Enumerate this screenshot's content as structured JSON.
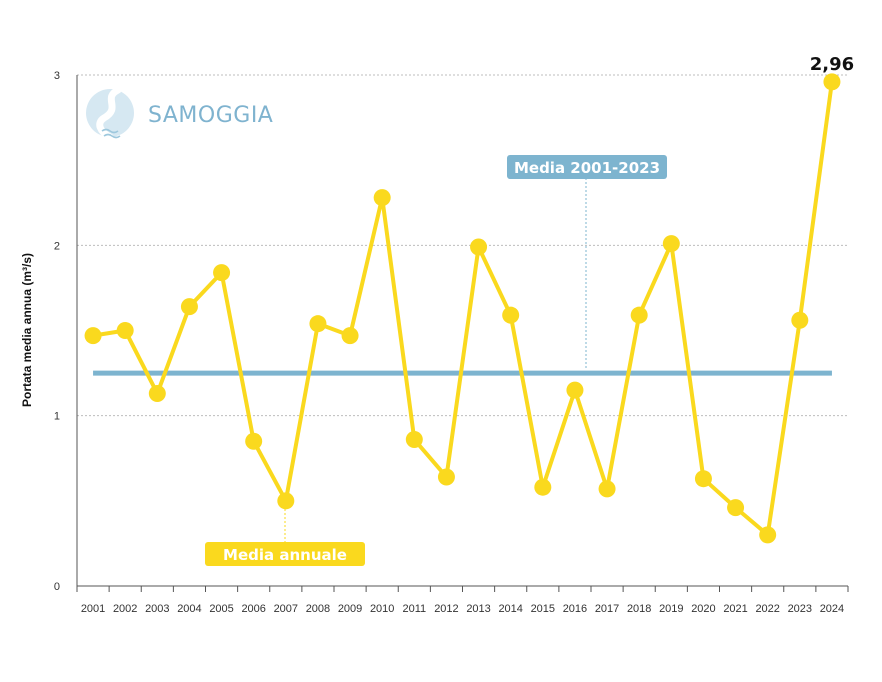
{
  "brand": {
    "name": "SAMOGGIA",
    "icon": "river-drop-icon"
  },
  "colors": {
    "series": "#fad91e",
    "mean": "#7db4cf",
    "grid": "#bdbdbd",
    "axis": "#555555"
  },
  "chart_data": {
    "type": "line",
    "ylabel": "Portata media annua (m³/s)",
    "ylim": [
      0,
      3
    ],
    "yticks": [
      "0",
      "1",
      "2",
      "3"
    ],
    "grid": "horizontal dashed",
    "categories": [
      "2001",
      "2002",
      "2003",
      "2004",
      "2005",
      "2006",
      "2007",
      "2008",
      "2009",
      "2010",
      "2011",
      "2012",
      "2013",
      "2014",
      "2015",
      "2016",
      "2017",
      "2018",
      "2019",
      "2020",
      "2021",
      "2022",
      "2023",
      "2024"
    ],
    "series": [
      {
        "name": "Media annuale",
        "values": [
          1.47,
          1.5,
          1.13,
          1.64,
          1.84,
          0.85,
          0.5,
          1.54,
          1.47,
          2.28,
          0.86,
          0.64,
          1.99,
          1.59,
          0.58,
          1.15,
          0.57,
          1.59,
          2.01,
          0.63,
          0.46,
          0.3,
          1.56,
          2.96
        ]
      }
    ],
    "reference_line": {
      "name": "Media 2001-2023",
      "value": 1.25
    },
    "last_value_label": "2,96"
  }
}
